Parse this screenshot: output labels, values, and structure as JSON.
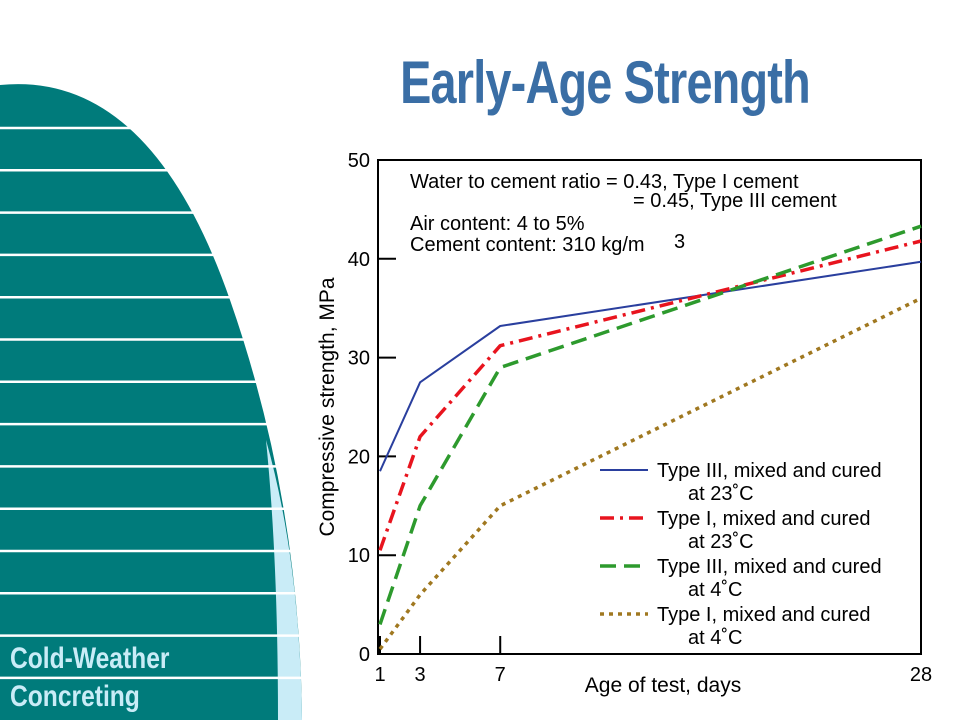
{
  "title": "Early-Age Strength",
  "footer": {
    "line1": "Cold-Weather",
    "line2": "Concreting"
  },
  "colors": {
    "title": "#3a6ea5",
    "teal": "#007b7b",
    "light_blue": "#c9ecf7"
  },
  "chart_data": {
    "type": "line",
    "xlabel": "Age of test, days",
    "ylabel": "Compressive strength, MPa",
    "x_ticks": [
      "1",
      "3",
      "7",
      "28"
    ],
    "y_ticks": [
      "0",
      "10",
      "20",
      "30",
      "40",
      "50"
    ],
    "xlim": [
      1,
      28
    ],
    "ylim": [
      0,
      50
    ],
    "notes": [
      "Water to cement ratio = 0.43, Type I cement",
      "= 0.45, Type III cement",
      "Air content: 4 to 5%",
      "Cement content: 310 kg/m",
      "3"
    ],
    "legend_position": "bottom-right",
    "series": [
      {
        "name": "Type III, mixed and cured",
        "name2": "at 23˚C",
        "color": "#2a3f9e",
        "dash": "solid",
        "x": [
          1,
          3,
          7,
          28
        ],
        "y": [
          18.5,
          27.5,
          33.2,
          39.7
        ]
      },
      {
        "name": "Type I, mixed and cured",
        "name2": "at 23˚C",
        "color": "#e8141e",
        "dash": "dashdot",
        "x": [
          1,
          3,
          7,
          28
        ],
        "y": [
          10.5,
          22,
          31.2,
          41.8
        ]
      },
      {
        "name": "Type III, mixed and cured",
        "name2": "at 4˚C",
        "color": "#2d9a2d",
        "dash": "dashed",
        "x": [
          1,
          3,
          7,
          28
        ],
        "y": [
          3,
          15,
          29,
          43.3
        ]
      },
      {
        "name": "Type I, mixed and cured",
        "name2": "at 4˚C",
        "color": "#a07820",
        "dash": "dotted",
        "x": [
          1,
          3,
          7,
          28
        ],
        "y": [
          0.5,
          6,
          15,
          36
        ]
      }
    ]
  }
}
